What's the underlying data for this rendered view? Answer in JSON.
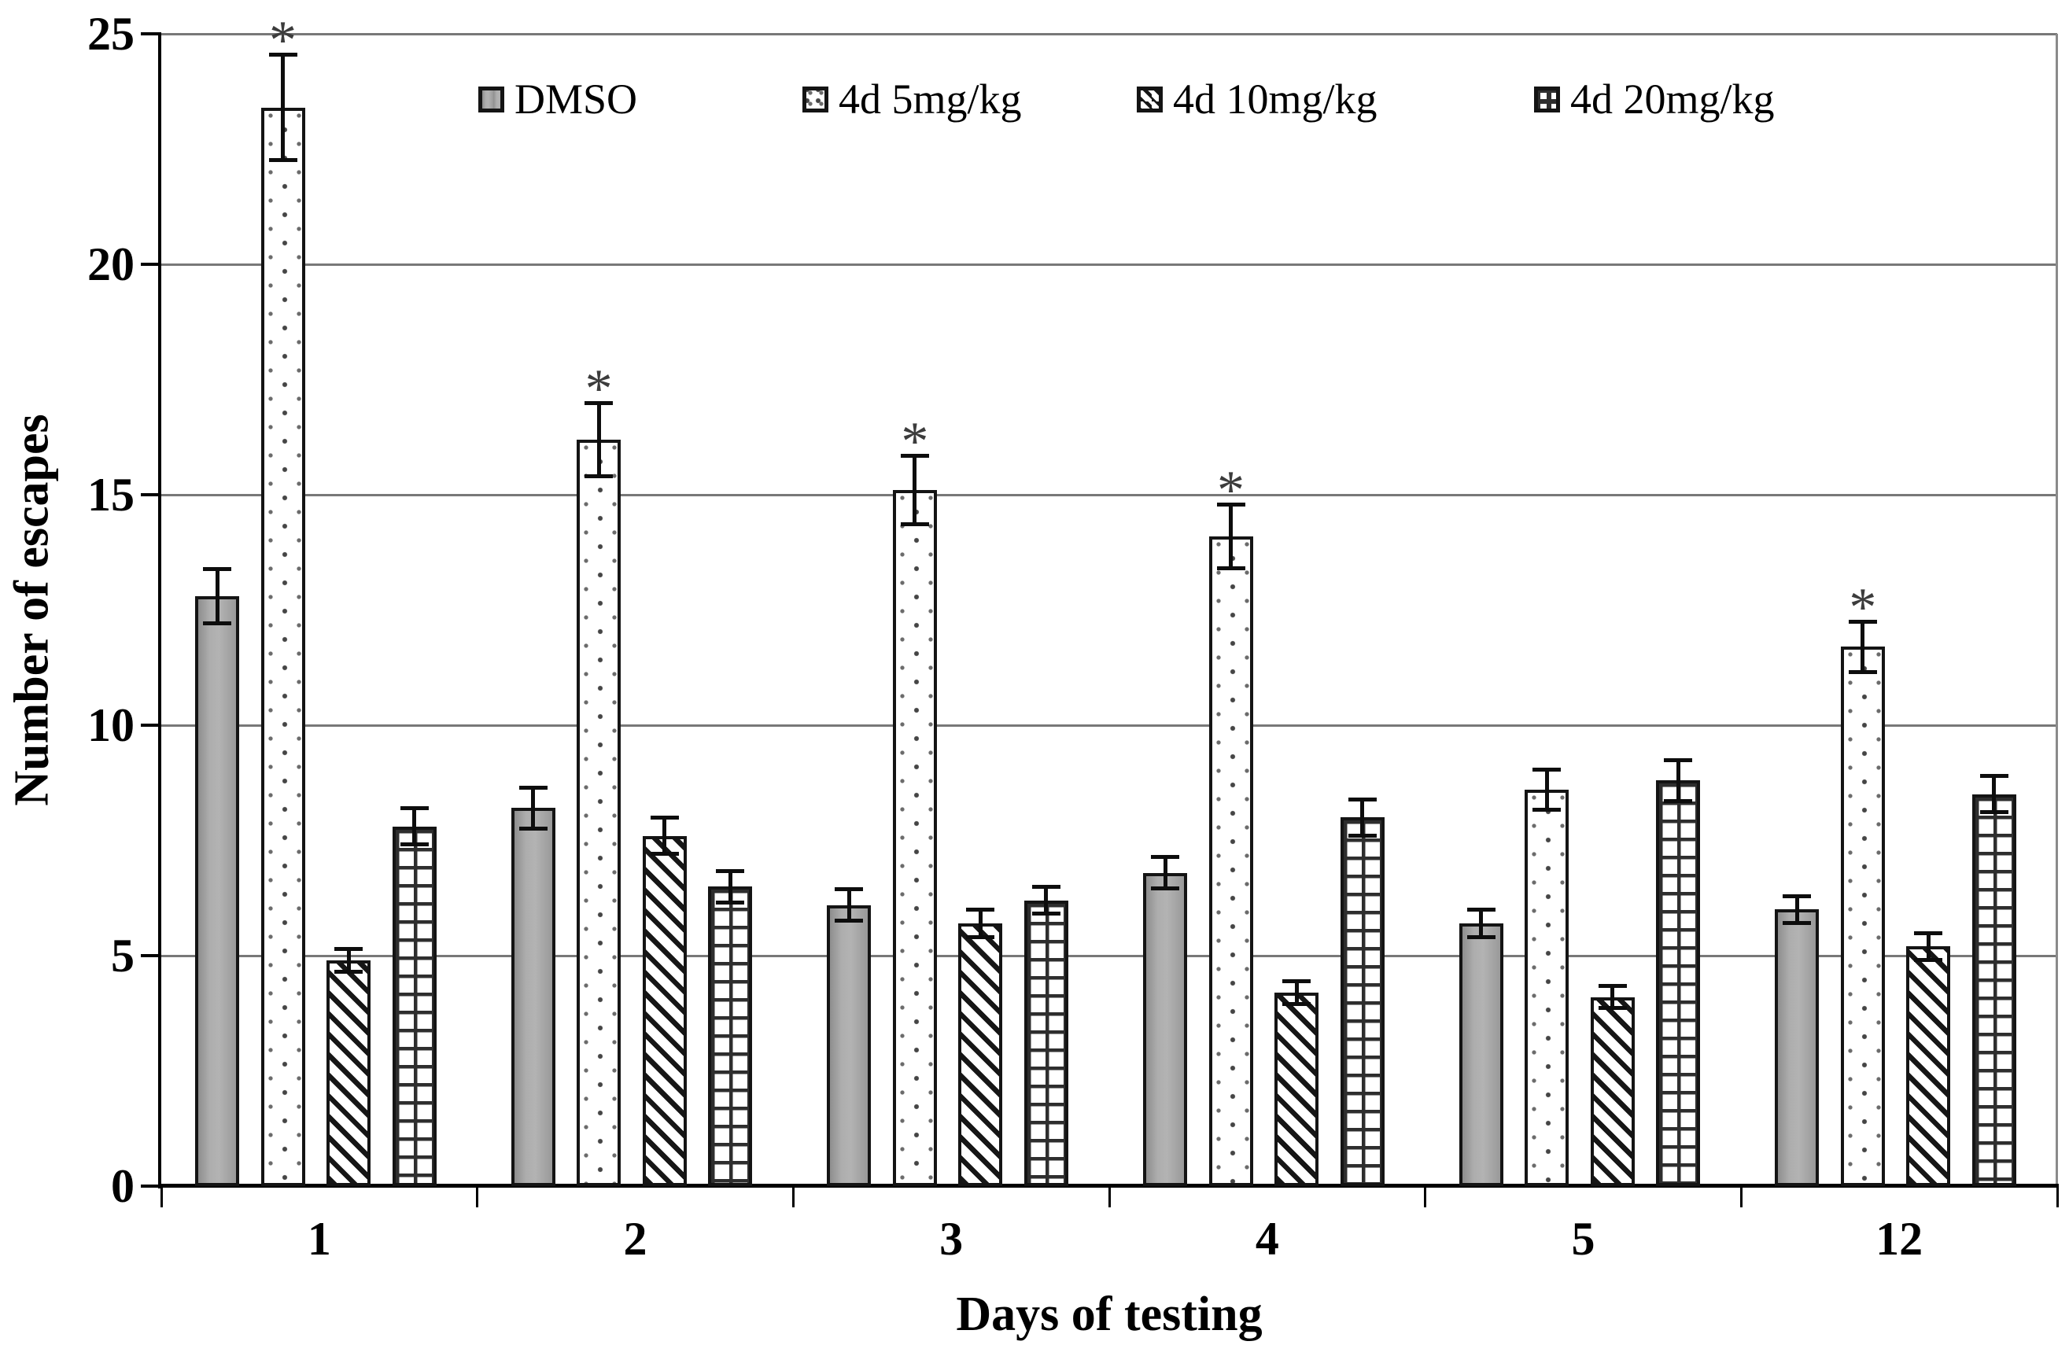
{
  "chart_data": {
    "type": "bar",
    "title": "",
    "xlabel": "Days of testing",
    "ylabel": "Number of escapes",
    "categories": [
      "1",
      "2",
      "3",
      "4",
      "5",
      "12"
    ],
    "ylim": [
      0,
      25
    ],
    "yticks": [
      0,
      5,
      10,
      15,
      20,
      25
    ],
    "grid": true,
    "legend_position": "top-inside",
    "significance_marker": "*",
    "series": [
      {
        "name": "DMSO",
        "pattern": "solid-gray",
        "values": [
          12.8,
          8.2,
          6.1,
          6.8,
          5.7,
          6.0
        ],
        "errors": [
          0.6,
          0.45,
          0.35,
          0.35,
          0.3,
          0.3
        ],
        "significant": [
          false,
          false,
          false,
          false,
          false,
          false
        ]
      },
      {
        "name": "4d 5mg/kg",
        "pattern": "dots",
        "values": [
          23.4,
          16.2,
          15.1,
          14.1,
          8.6,
          11.7
        ],
        "errors": [
          1.15,
          0.8,
          0.75,
          0.7,
          0.45,
          0.55
        ],
        "significant": [
          true,
          true,
          true,
          true,
          false,
          true
        ]
      },
      {
        "name": "4d 10mg/kg",
        "pattern": "diagonal",
        "values": [
          4.9,
          7.6,
          5.7,
          4.2,
          4.1,
          5.2
        ],
        "errors": [
          0.25,
          0.4,
          0.3,
          0.25,
          0.25,
          0.3
        ],
        "significant": [
          false,
          false,
          false,
          false,
          false,
          false
        ]
      },
      {
        "name": "4d 20mg/kg",
        "pattern": "grid",
        "values": [
          7.8,
          6.5,
          6.2,
          8.0,
          8.8,
          8.5
        ],
        "errors": [
          0.4,
          0.35,
          0.3,
          0.4,
          0.45,
          0.4
        ],
        "significant": [
          false,
          false,
          false,
          false,
          false,
          false
        ]
      }
    ],
    "colors": {
      "bar_outline": "#141414",
      "dmso_fill": "#a4a4a4",
      "pattern_ink": "#1c1c1c",
      "gridline": "#787878",
      "axis": "#000000",
      "background": "#ffffff",
      "error_bar": "#0d0d0d"
    }
  }
}
